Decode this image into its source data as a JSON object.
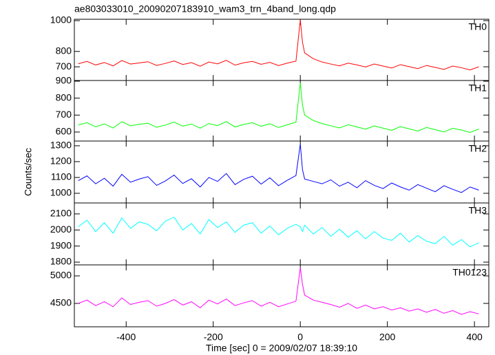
{
  "chart_data": [
    {
      "type": "line",
      "title": "ae803033010_20090207183910_wam3_trn_4band_long.qdp",
      "x": [
        -510,
        -490,
        -470,
        -450,
        -430,
        -410,
        -390,
        -370,
        -350,
        -330,
        -310,
        -290,
        -270,
        -250,
        -230,
        -210,
        -190,
        -170,
        -150,
        -130,
        -110,
        -90,
        -70,
        -50,
        -30,
        -10,
        0,
        5,
        10,
        30,
        50,
        70,
        90,
        110,
        130,
        150,
        170,
        190,
        210,
        230,
        250,
        270,
        290,
        310,
        330,
        350,
        370,
        390,
        410
      ],
      "series": [
        {
          "name": "TH0",
          "color": "#ff0000",
          "values": [
            720,
            735,
            712,
            728,
            706,
            741,
            718,
            725,
            733,
            709,
            722,
            738,
            715,
            727,
            704,
            731,
            719,
            742,
            711,
            726,
            735,
            716,
            729,
            708,
            724,
            737,
            1005,
            860,
            790,
            752,
            731,
            718,
            706,
            724,
            712,
            699,
            718,
            705,
            692,
            714,
            701,
            688,
            709,
            696,
            683,
            705,
            694,
            680,
            700
          ]
        }
      ],
      "xlim": [
        -519,
        433
      ],
      "ylim": [
        611,
        1009
      ],
      "yticks": [
        700,
        800,
        1000
      ]
    },
    {
      "type": "line",
      "x": [
        -510,
        -490,
        -470,
        -450,
        -430,
        -410,
        -390,
        -370,
        -350,
        -330,
        -310,
        -290,
        -270,
        -250,
        -230,
        -210,
        -190,
        -170,
        -150,
        -130,
        -110,
        -90,
        -70,
        -50,
        -30,
        -10,
        0,
        5,
        10,
        30,
        50,
        70,
        90,
        110,
        130,
        150,
        170,
        190,
        210,
        230,
        250,
        270,
        290,
        310,
        330,
        350,
        370,
        390,
        410
      ],
      "series": [
        {
          "name": "TH1",
          "color": "#00ff00",
          "values": [
            642,
            655,
            631,
            648,
            624,
            661,
            637,
            646,
            652,
            628,
            641,
            659,
            635,
            647,
            623,
            650,
            638,
            662,
            630,
            645,
            655,
            634,
            649,
            627,
            643,
            658,
            890,
            760,
            700,
            668,
            650,
            637,
            624,
            643,
            630,
            617,
            636,
            623,
            610,
            632,
            619,
            606,
            627,
            614,
            601,
            622,
            612,
            598,
            618
          ]
        }
      ],
      "xlim": [
        -519,
        433
      ],
      "ylim": [
        547,
        904
      ],
      "yticks": [
        600,
        700,
        800,
        900
      ]
    },
    {
      "type": "line",
      "ylabel": "Counts/sec",
      "x": [
        -510,
        -490,
        -470,
        -450,
        -430,
        -410,
        -390,
        -370,
        -350,
        -330,
        -310,
        -290,
        -270,
        -250,
        -230,
        -210,
        -190,
        -170,
        -150,
        -130,
        -110,
        -90,
        -70,
        -50,
        -30,
        -10,
        0,
        5,
        10,
        30,
        50,
        70,
        90,
        110,
        130,
        150,
        170,
        190,
        210,
        230,
        250,
        270,
        290,
        310,
        330,
        350,
        370,
        390,
        410
      ],
      "series": [
        {
          "name": "TH2",
          "color": "#0000ff",
          "values": [
            1080,
            1110,
            1060,
            1095,
            1045,
            1120,
            1070,
            1090,
            1105,
            1050,
            1078,
            1115,
            1062,
            1092,
            1040,
            1100,
            1075,
            1125,
            1055,
            1088,
            1108,
            1058,
            1098,
            1048,
            1082,
            1112,
            1310,
            1150,
            1090,
            1075,
            1060,
            1085,
            1045,
            1070,
            1035,
            1080,
            1050,
            1030,
            1065,
            1040,
            1020,
            1055,
            1032,
            1010,
            1048,
            1025,
            1005,
            1040,
            1020
          ]
        }
      ],
      "xlim": [
        -519,
        433
      ],
      "ylim": [
        939,
        1330
      ],
      "yticks": [
        1000,
        1100,
        1200,
        1300
      ]
    },
    {
      "type": "line",
      "x": [
        -510,
        -490,
        -470,
        -450,
        -430,
        -410,
        -390,
        -370,
        -350,
        -330,
        -310,
        -290,
        -270,
        -250,
        -230,
        -210,
        -190,
        -170,
        -150,
        -130,
        -110,
        -90,
        -70,
        -50,
        -30,
        -10,
        0,
        5,
        10,
        30,
        50,
        70,
        90,
        110,
        130,
        150,
        170,
        190,
        210,
        230,
        250,
        270,
        290,
        310,
        330,
        350,
        370,
        390,
        410
      ],
      "series": [
        {
          "name": "TH3",
          "color": "#00ffff",
          "values": [
            2020,
            2060,
            1990,
            2045,
            1980,
            2075,
            2010,
            2050,
            2035,
            1995,
            2055,
            2080,
            2000,
            2040,
            1975,
            2065,
            2015,
            2050,
            1985,
            2030,
            2045,
            1980,
            2025,
            1970,
            2010,
            2035,
            2020,
            1990,
            2030,
            1975,
            2015,
            1960,
            2005,
            1955,
            1995,
            1945,
            1990,
            1950,
            1935,
            1980,
            1925,
            1965,
            1930,
            1915,
            1960,
            1905,
            1940,
            1895,
            1920
          ]
        }
      ],
      "xlim": [
        -519,
        433
      ],
      "ylim": [
        1783,
        2168
      ],
      "yticks": [
        1800,
        1900,
        2000,
        2100
      ]
    },
    {
      "type": "line",
      "xlabel": "Time [sec] 0 = 2009/02/07 18:39:10",
      "x": [
        -510,
        -490,
        -470,
        -450,
        -430,
        -410,
        -390,
        -370,
        -350,
        -330,
        -310,
        -290,
        -270,
        -250,
        -230,
        -210,
        -190,
        -170,
        -150,
        -130,
        -110,
        -90,
        -70,
        -50,
        -30,
        -10,
        0,
        5,
        10,
        30,
        50,
        70,
        90,
        110,
        130,
        150,
        170,
        190,
        210,
        230,
        250,
        270,
        290,
        310,
        330,
        350,
        370,
        390,
        410
      ],
      "series": [
        {
          "name": "TH0123",
          "color": "#ff00ff",
          "values": [
            4500,
            4560,
            4460,
            4530,
            4440,
            4600,
            4480,
            4520,
            4550,
            4450,
            4500,
            4570,
            4470,
            4530,
            4420,
            4560,
            4490,
            4580,
            4460,
            4510,
            4550,
            4450,
            4520,
            4440,
            4490,
            4540,
            5150,
            4850,
            4650,
            4560,
            4520,
            4480,
            4430,
            4500,
            4410,
            4470,
            4400,
            4440,
            4380,
            4420,
            4360,
            4400,
            4340,
            4390,
            4320,
            4370,
            4300,
            4350,
            4310
          ]
        }
      ],
      "xlim": [
        -519,
        433
      ],
      "ylim": [
        4075,
        5200
      ],
      "yticks": [
        4500,
        5000
      ],
      "xticks": [
        -400,
        -200,
        0,
        200,
        400
      ]
    }
  ]
}
